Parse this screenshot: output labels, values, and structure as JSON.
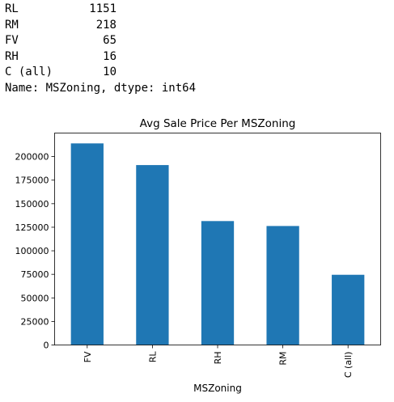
{
  "output": {
    "rows": [
      {
        "label": "RL",
        "value": "1151"
      },
      {
        "label": "RM",
        "value": "218"
      },
      {
        "label": "FV",
        "value": "65"
      },
      {
        "label": "RH",
        "value": "16"
      },
      {
        "label": "C (all)",
        "value": "10"
      }
    ],
    "footer": "Name: MSZoning, dtype: int64"
  },
  "chart_data": {
    "type": "bar",
    "title": "Avg Sale Price Per MSZoning",
    "xlabel": "MSZoning",
    "ylabel": "",
    "categories": [
      "FV",
      "RL",
      "RH",
      "RM",
      "C (all)"
    ],
    "values": [
      214014,
      191005,
      131558,
      126317,
      74528
    ],
    "ylim": [
      0,
      225000
    ],
    "yticks": [
      0,
      25000,
      50000,
      75000,
      100000,
      125000,
      150000,
      175000,
      200000
    ],
    "ytick_labels": [
      "0",
      "25000",
      "50000",
      "75000",
      "100000",
      "125000",
      "150000",
      "175000",
      "200000"
    ],
    "bar_color": "#1f77b4",
    "grid": false,
    "legend": false
  }
}
